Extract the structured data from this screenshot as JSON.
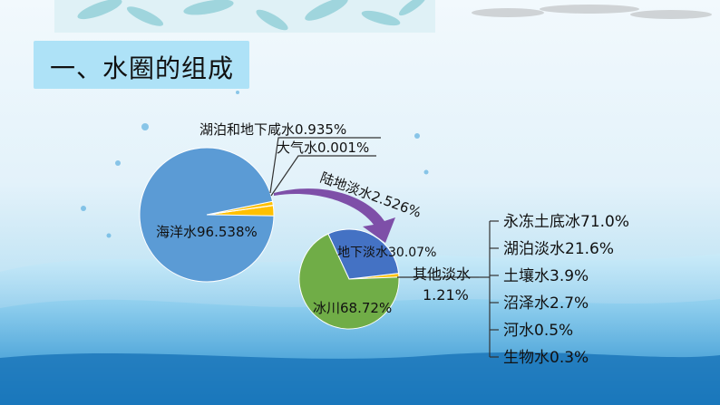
{
  "title": "一、水圈的组成",
  "colors": {
    "ocean": "#5b9bd5",
    "lake_salt": "#ffc000",
    "atmosphere": "#a5a5a5",
    "land_fresh": "#ffc000",
    "groundwater": "#4472c4",
    "glacier": "#70ad47",
    "other": "#ffc000",
    "arrow": "#7e4fa8"
  },
  "chart_data": [
    {
      "type": "pie",
      "slices": [
        {
          "name": "海洋水",
          "value": 96.538,
          "label": "海洋水96.538%"
        },
        {
          "name": "湖泊和地下咸水",
          "value": 0.935,
          "label": "湖泊和地下咸水0.935%"
        },
        {
          "name": "大气水",
          "value": 0.001,
          "label": "大气水0.001%"
        },
        {
          "name": "陆地淡水",
          "value": 2.526,
          "label": "陆地淡水2.526%"
        }
      ]
    },
    {
      "type": "pie",
      "slices": [
        {
          "name": "地下淡水",
          "value": 30.07,
          "label": "地下淡水30.07%"
        },
        {
          "name": "冰川",
          "value": 68.72,
          "label": "冰川68.72%"
        },
        {
          "name": "其他淡水",
          "value": 1.21,
          "label": "其他淡水",
          "label2": "1.21%"
        }
      ]
    },
    {
      "type": "table",
      "items": [
        {
          "name": "永冻土底冰",
          "value": 71.0,
          "label": "永冻土底冰71.0%"
        },
        {
          "name": "湖泊淡水",
          "value": 21.6,
          "label": "湖泊淡水21.6%"
        },
        {
          "name": "土壤水",
          "value": 3.9,
          "label": "土壤水3.9%"
        },
        {
          "name": "沼泽水",
          "value": 2.7,
          "label": "沼泽水2.7%"
        },
        {
          "name": "河水",
          "value": 0.5,
          "label": "河水0.5%"
        },
        {
          "name": "生物水",
          "value": 0.3,
          "label": "生物水0.3%"
        }
      ]
    }
  ]
}
